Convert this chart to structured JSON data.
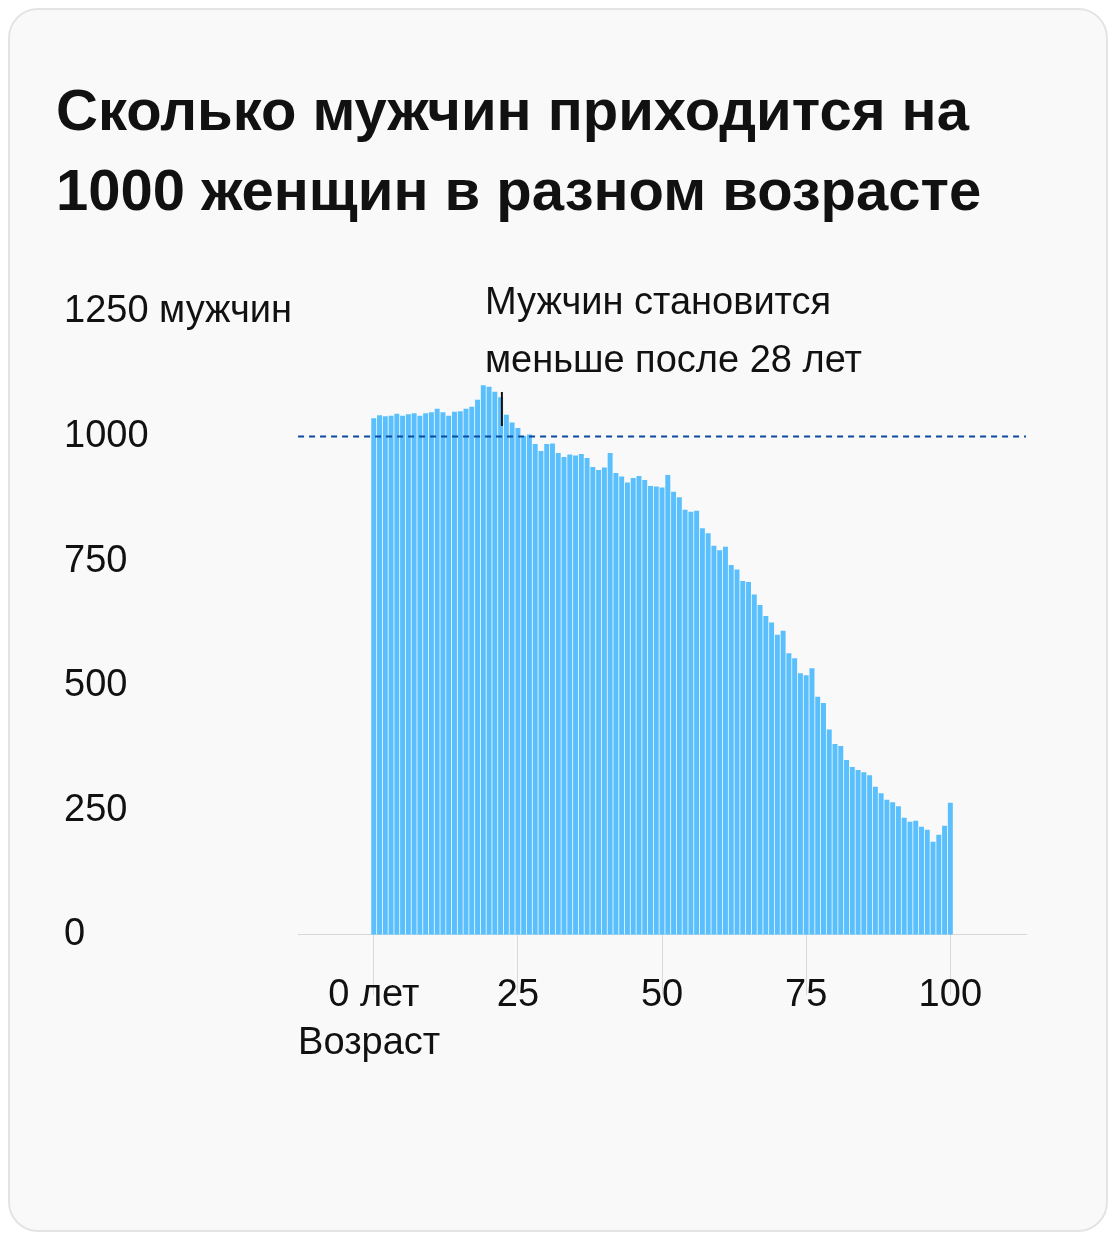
{
  "chart_data": {
    "type": "bar",
    "title": "Сколько мужчин приходится на 1000 женщин в разном возрасте",
    "xlabel": "Возраст",
    "x": [
      0,
      1,
      2,
      3,
      4,
      5,
      6,
      7,
      8,
      9,
      10,
      11,
      12,
      13,
      14,
      15,
      16,
      17,
      18,
      19,
      20,
      21,
      22,
      23,
      24,
      25,
      26,
      27,
      28,
      29,
      30,
      31,
      32,
      33,
      34,
      35,
      36,
      37,
      38,
      39,
      40,
      41,
      42,
      43,
      44,
      45,
      46,
      47,
      48,
      49,
      50,
      51,
      52,
      53,
      54,
      55,
      56,
      57,
      58,
      59,
      60,
      61,
      62,
      63,
      64,
      65,
      66,
      67,
      68,
      69,
      70,
      71,
      72,
      73,
      74,
      75,
      76,
      77,
      78,
      79,
      80,
      81,
      82,
      83,
      84,
      85,
      86,
      87,
      88,
      89,
      90,
      91,
      92,
      93,
      94,
      95,
      96,
      97,
      98,
      99,
      100
    ],
    "values": [
      1037,
      1043,
      1041,
      1042,
      1046,
      1042,
      1045,
      1047,
      1042,
      1047,
      1049,
      1056,
      1049,
      1042,
      1050,
      1051,
      1056,
      1060,
      1074,
      1103,
      1100,
      1090,
      1079,
      1044,
      1028,
      1017,
      1001,
      1004,
      985,
      971,
      985,
      986,
      967,
      959,
      964,
      962,
      965,
      957,
      939,
      933,
      938,
      967,
      927,
      920,
      908,
      917,
      921,
      913,
      901,
      900,
      898,
      923,
      889,
      878,
      853,
      849,
      851,
      816,
      806,
      781,
      772,
      779,
      742,
      733,
      710,
      708,
      683,
      662,
      640,
      627,
      602,
      610,
      565,
      555,
      525,
      521,
      535,
      478,
      465,
      412,
      383,
      379,
      351,
      337,
      331,
      326,
      320,
      297,
      284,
      271,
      266,
      258,
      235,
      227,
      229,
      217,
      211,
      187,
      201,
      219,
      265
    ],
    "color": "#5ac0fd",
    "xlim": [
      -0.5,
      100.5
    ],
    "xticks": [
      {
        "value": 0,
        "label": "0 лет"
      },
      25,
      50,
      75,
      100
    ],
    "ylim": [
      0,
      1250
    ],
    "yticks": [
      0,
      250,
      500,
      750,
      1000,
      {
        "value": 1250,
        "label": "1250 мужчин"
      }
    ],
    "grid": false,
    "legend": false,
    "ref_lines": [
      {
        "axis": "y",
        "value": 1000,
        "color": "#0a4aa0",
        "line_style": "dashed"
      }
    ],
    "annotations": [
      "Мужчин становится меньше после 28 лет"
    ]
  }
}
